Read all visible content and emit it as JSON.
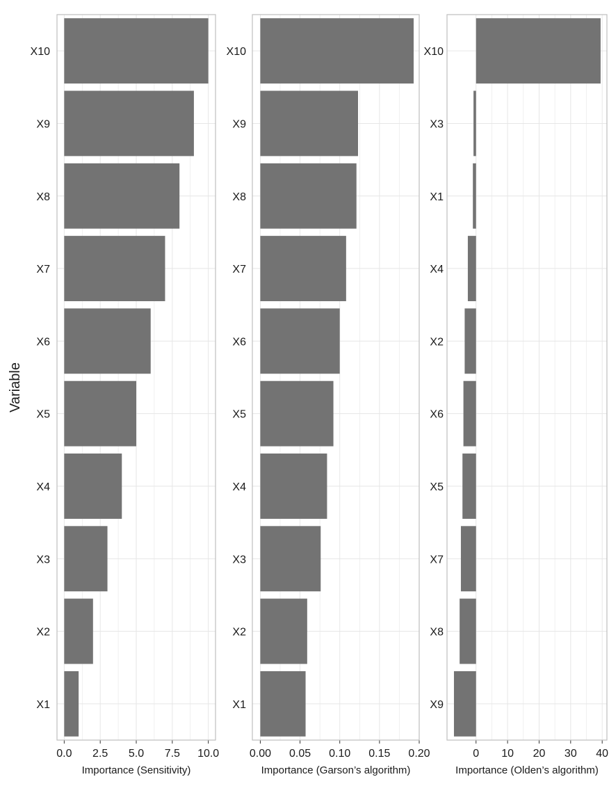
{
  "ylabel": "Variable",
  "colors": {
    "bar": "#737373",
    "grid": "#e6e6e6",
    "frame": "#bfbfbf"
  },
  "chart_data": [
    {
      "type": "bar",
      "orientation": "horizontal",
      "xlabel": "Importance (Sensitivity)",
      "ylabel": "Variable",
      "categories": [
        "X10",
        "X9",
        "X8",
        "X7",
        "X6",
        "X5",
        "X4",
        "X3",
        "X2",
        "X1"
      ],
      "values": [
        10.0,
        9.0,
        8.0,
        7.0,
        6.0,
        5.0,
        4.0,
        3.0,
        2.0,
        1.0
      ],
      "xlim": [
        -0.5,
        10.5
      ],
      "xticks": [
        0,
        2.5,
        5,
        7.5,
        10
      ],
      "xtick_labels": [
        "0.0",
        "2.5",
        "5.0",
        "7.5",
        "10.0"
      ],
      "grid": true
    },
    {
      "type": "bar",
      "orientation": "horizontal",
      "xlabel": "Importance (Garson’s algorithm)",
      "categories": [
        "X10",
        "X9",
        "X8",
        "X7",
        "X6",
        "X5",
        "X4",
        "X3",
        "X2",
        "X1"
      ],
      "values": [
        0.193,
        0.123,
        0.121,
        0.108,
        0.1,
        0.092,
        0.084,
        0.076,
        0.059,
        0.057
      ],
      "xlim": [
        -0.01,
        0.2
      ],
      "xticks": [
        0,
        0.05,
        0.1,
        0.15,
        0.2
      ],
      "xtick_labels": [
        "0.00",
        "0.05",
        "0.10",
        "0.15",
        "0.20"
      ],
      "grid": true
    },
    {
      "type": "bar",
      "orientation": "horizontal",
      "xlabel": "Importance (Olden’s algorithm)",
      "categories": [
        "X10",
        "X3",
        "X1",
        "X4",
        "X2",
        "X6",
        "X5",
        "X7",
        "X8",
        "X9"
      ],
      "values": [
        39.5,
        -0.8,
        -1.0,
        -2.6,
        -3.6,
        -4.0,
        -4.3,
        -4.8,
        -5.2,
        -7.0
      ],
      "xlim": [
        -9.2,
        41.5
      ],
      "xticks": [
        0,
        10,
        20,
        30,
        40
      ],
      "xtick_labels": [
        "0",
        "10",
        "20",
        "30",
        "40"
      ],
      "grid": true
    }
  ]
}
